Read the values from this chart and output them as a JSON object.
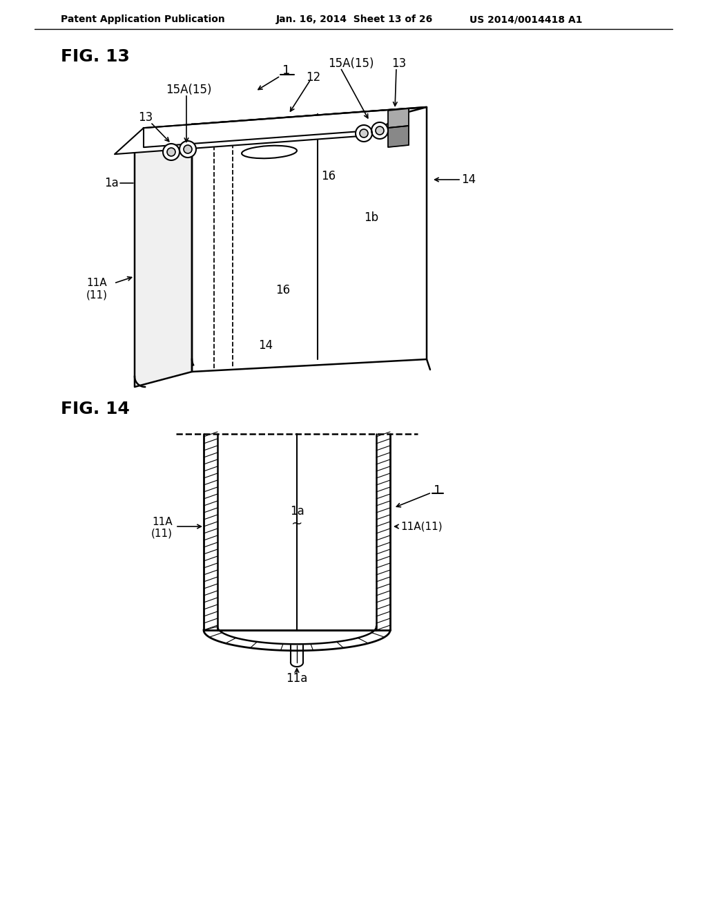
{
  "bg_color": "#ffffff",
  "header_left": "Patent Application Publication",
  "header_mid": "Jan. 16, 2014  Sheet 13 of 26",
  "header_right": "US 2014/0014418 A1",
  "fig13_label": "FIG. 13",
  "fig14_label": "FIG. 14",
  "line_color": "#000000",
  "font_size_header": 10,
  "font_size_fig": 18,
  "font_size_label": 12
}
